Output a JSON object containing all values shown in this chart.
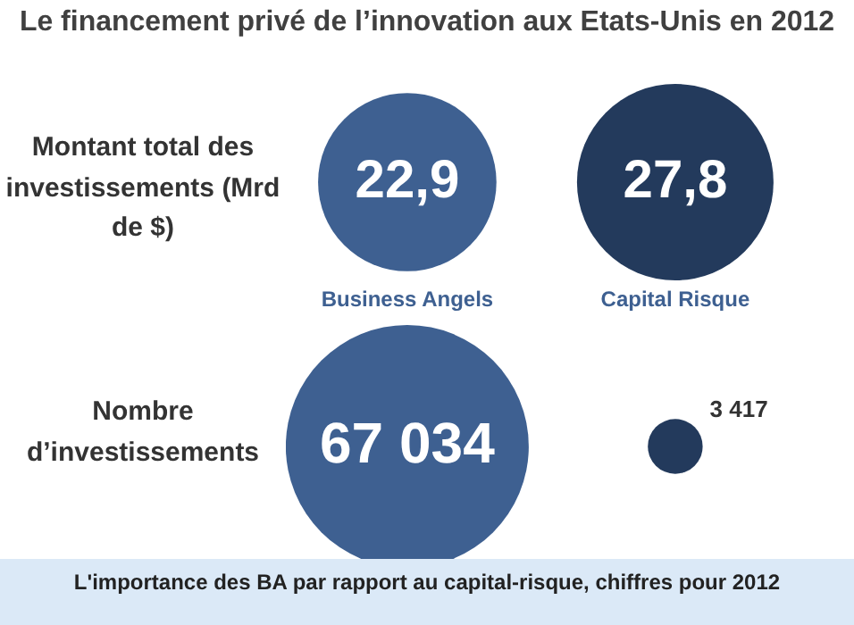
{
  "chart_data": [
    {
      "type": "other",
      "title": "Le financement privé de l’innovation aux Etats-Unis en 2012",
      "ylabel": "Montant total des investissements (Mrd de $)",
      "categories": [
        "Business Angels",
        "Capital Risque"
      ],
      "values": [
        22.9,
        27.8
      ],
      "value_labels": [
        "22,9",
        "27,8"
      ],
      "colors": [
        "#3e6091",
        "#233a5c"
      ]
    },
    {
      "type": "other",
      "ylabel": "Nombre d’investissements",
      "categories": [
        null,
        null
      ],
      "values": [
        67034,
        3417
      ],
      "value_labels": [
        "67 034",
        "3 417"
      ],
      "colors": [
        "#3e6091",
        "#233a5c"
      ],
      "annotations": [
        "L'importance des BA par rapport au capital-risque, chiffres pour 2012"
      ]
    }
  ]
}
